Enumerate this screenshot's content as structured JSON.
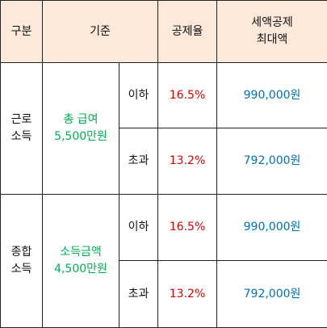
{
  "table": {
    "header": [
      [
        "구분"
      ],
      [
        "기준"
      ],
      [
        "공제율"
      ],
      [
        "세액공제",
        "최대액"
      ]
    ],
    "groups": [
      {
        "type": [
          "근로",
          "소득"
        ],
        "criterion": [
          "총 급여",
          "5,500만원"
        ],
        "rows": [
          [
            "이하",
            "16.5%",
            "990,000원"
          ],
          [
            "초과",
            "13.2%",
            "792,000원"
          ]
        ]
      },
      {
        "type": [
          "종합",
          "소득"
        ],
        "criterion": [
          "소득금액",
          "4,500만원"
        ],
        "rows": [
          [
            "이하",
            "16.5%",
            "990,000원"
          ],
          [
            "초과",
            "13.2%",
            "792,000원"
          ]
        ]
      }
    ]
  }
}
